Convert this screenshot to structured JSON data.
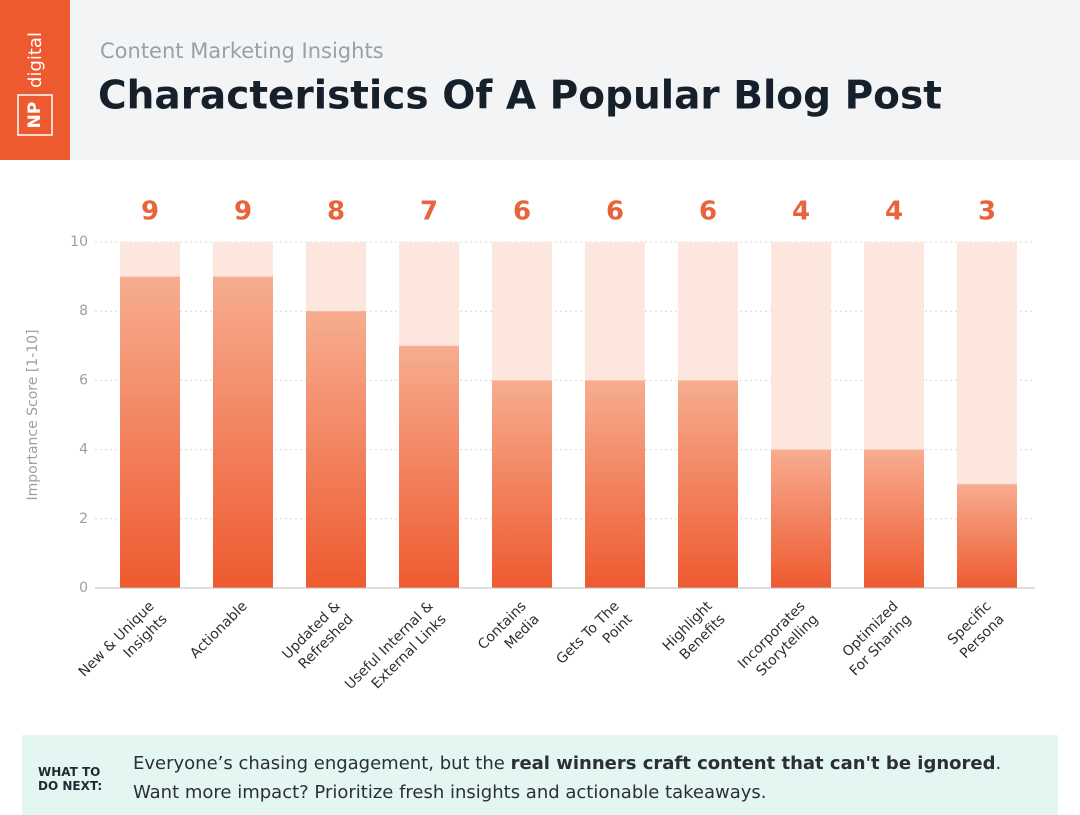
{
  "header": {
    "logo": [
      "NP",
      "digital"
    ],
    "subtitle": "Content Marketing Insights"
  },
  "chart_data": {
    "type": "bar",
    "title": "Characteristics Of A Popular Blog Post",
    "categories": [
      [
        "New & Unique",
        "Insights"
      ],
      [
        "Actionable"
      ],
      [
        "Updated &",
        "Refreshed"
      ],
      [
        "Useful Internal &",
        "External Links"
      ],
      [
        "Contains",
        "Media"
      ],
      [
        "Gets To The",
        "Point"
      ],
      [
        "Highlight",
        "Benefits"
      ],
      [
        "Incorporates",
        "Storytelling"
      ],
      [
        "Optimized",
        "For Sharing"
      ],
      [
        "Specific",
        "Persona"
      ]
    ],
    "values": [
      9,
      9,
      8,
      7,
      6,
      6,
      6,
      4,
      4,
      3
    ],
    "color": "#ee5a2f",
    "track_color": "#fde6de",
    "label_color": "#e8643c",
    "ylabel": "Importance Score [1-10]",
    "ylim": [
      0,
      10
    ],
    "yticks": [
      0,
      2,
      4,
      6,
      8,
      10
    ],
    "grid": true
  },
  "footer": {
    "heading": [
      "WHAT TO",
      "DO NEXT:"
    ],
    "text": [
      "Everyone’s chasing engagement, but the ",
      "real winners craft content that can't be ignored",
      ". Want more impact? Prioritize fresh insights and actionable takeaways."
    ]
  }
}
